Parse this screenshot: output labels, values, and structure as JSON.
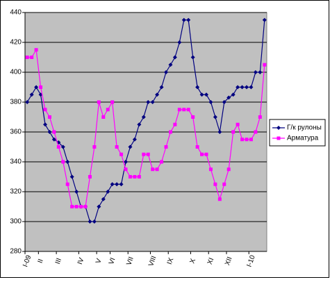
{
  "chart_data": {
    "type": "line",
    "categories": [
      "I-09",
      null,
      null,
      "II",
      null,
      null,
      null,
      "III",
      null,
      null,
      null,
      null,
      "IV",
      null,
      null,
      null,
      "V",
      null,
      null,
      "VI",
      null,
      null,
      null,
      "VII",
      null,
      null,
      null,
      null,
      "VIII",
      null,
      null,
      null,
      "IX",
      null,
      null,
      null,
      null,
      "X",
      null,
      null,
      null,
      "XI",
      null,
      null,
      null,
      "XII",
      null,
      null,
      null,
      null,
      "I-10",
      null,
      null,
      null
    ],
    "series": [
      {
        "name": "Г/к рулоны",
        "color": "#000080",
        "marker": "diamond",
        "values": [
          380,
          385,
          390,
          385,
          365,
          360,
          355,
          353,
          350,
          340,
          330,
          320,
          310,
          310,
          300,
          300,
          310,
          315,
          320,
          325,
          325,
          325,
          340,
          350,
          355,
          365,
          370,
          380,
          380,
          385,
          390,
          400,
          405,
          410,
          420,
          435,
          435,
          410,
          390,
          385,
          385,
          380,
          370,
          360,
          380,
          383,
          385,
          390,
          390,
          390,
          390,
          400,
          400,
          435
        ]
      },
      {
        "name": "Арматура",
        "color": "#ff00ff",
        "marker": "square",
        "values": [
          410,
          410,
          415,
          390,
          375,
          370,
          360,
          350,
          340,
          325,
          310,
          310,
          310,
          310,
          330,
          350,
          380,
          370,
          375,
          380,
          350,
          345,
          335,
          330,
          330,
          330,
          345,
          345,
          335,
          335,
          340,
          350,
          360,
          365,
          375,
          375,
          375,
          370,
          350,
          345,
          345,
          335,
          325,
          315,
          325,
          335,
          360,
          365,
          355,
          355,
          355,
          360,
          370,
          405
        ]
      }
    ],
    "ylim": [
      280,
      440
    ],
    "yticks": [
      280,
      300,
      320,
      340,
      360,
      380,
      400,
      420,
      440
    ],
    "grid": true,
    "legend": "right"
  }
}
